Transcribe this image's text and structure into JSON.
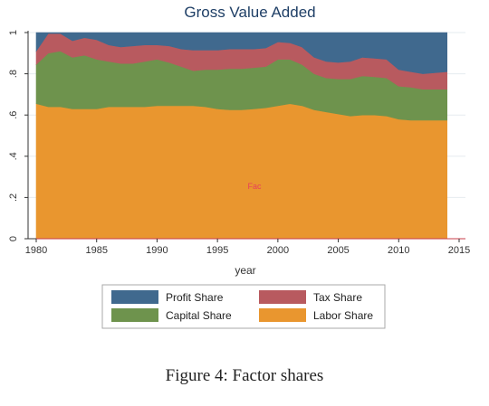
{
  "chart_data": {
    "type": "area",
    "title": "Gross Value Added",
    "xlabel": "year",
    "ylabel": "",
    "stacked": true,
    "xlim": [
      1980,
      2015
    ],
    "ylim": [
      0,
      1
    ],
    "x_ticks": [
      1980,
      1985,
      1990,
      1995,
      2000,
      2005,
      2010,
      2015
    ],
    "y_ticks": [
      0,
      0.2,
      0.4,
      0.6,
      0.8,
      1
    ],
    "y_tick_labels": [
      "0",
      ".2",
      ".4",
      ".6",
      ".8",
      "1"
    ],
    "grid": true,
    "legend_position": "bottom",
    "annotation": "Fac",
    "x": [
      1980,
      1981,
      1982,
      1983,
      1984,
      1985,
      1986,
      1987,
      1988,
      1989,
      1990,
      1991,
      1992,
      1993,
      1994,
      1995,
      1996,
      1997,
      1998,
      1999,
      2000,
      2001,
      2002,
      2003,
      2004,
      2005,
      2006,
      2007,
      2008,
      2009,
      2010,
      2011,
      2012,
      2013,
      2014
    ],
    "series": [
      {
        "name": "Labor Share",
        "color": "#E9962F",
        "values": [
          0.655,
          0.64,
          0.64,
          0.63,
          0.63,
          0.63,
          0.64,
          0.64,
          0.64,
          0.64,
          0.645,
          0.645,
          0.645,
          0.645,
          0.64,
          0.63,
          0.625,
          0.625,
          0.63,
          0.635,
          0.645,
          0.655,
          0.645,
          0.625,
          0.615,
          0.605,
          0.595,
          0.6,
          0.6,
          0.595,
          0.58,
          0.575,
          0.575,
          0.575,
          0.575
        ]
      },
      {
        "name": "Capital Share",
        "color": "#6E934D",
        "values": [
          0.19,
          0.26,
          0.27,
          0.25,
          0.26,
          0.24,
          0.22,
          0.21,
          0.21,
          0.22,
          0.225,
          0.21,
          0.19,
          0.17,
          0.18,
          0.19,
          0.2,
          0.2,
          0.2,
          0.2,
          0.225,
          0.215,
          0.2,
          0.175,
          0.165,
          0.17,
          0.18,
          0.19,
          0.185,
          0.185,
          0.16,
          0.16,
          0.15,
          0.15,
          0.15
        ]
      },
      {
        "name": "Tax Share",
        "color": "#B85A5F",
        "values": [
          0.065,
          0.095,
          0.085,
          0.08,
          0.085,
          0.095,
          0.08,
          0.08,
          0.085,
          0.08,
          0.07,
          0.08,
          0.085,
          0.1,
          0.095,
          0.095,
          0.095,
          0.095,
          0.09,
          0.09,
          0.085,
          0.08,
          0.085,
          0.08,
          0.08,
          0.08,
          0.085,
          0.09,
          0.09,
          0.09,
          0.08,
          0.075,
          0.075,
          0.08,
          0.085
        ]
      },
      {
        "name": "Profit Share",
        "color": "#40698E",
        "values": [
          0.09,
          0.005,
          0.005,
          0.04,
          0.025,
          0.035,
          0.06,
          0.07,
          0.065,
          0.06,
          0.06,
          0.065,
          0.08,
          0.085,
          0.085,
          0.085,
          0.08,
          0.08,
          0.08,
          0.075,
          0.045,
          0.05,
          0.07,
          0.12,
          0.14,
          0.145,
          0.14,
          0.12,
          0.125,
          0.13,
          0.18,
          0.19,
          0.2,
          0.195,
          0.19
        ]
      }
    ],
    "legend_order": [
      "Profit Share",
      "Tax Share",
      "Capital Share",
      "Labor Share"
    ]
  },
  "caption": "Figure 4: Factor shares"
}
